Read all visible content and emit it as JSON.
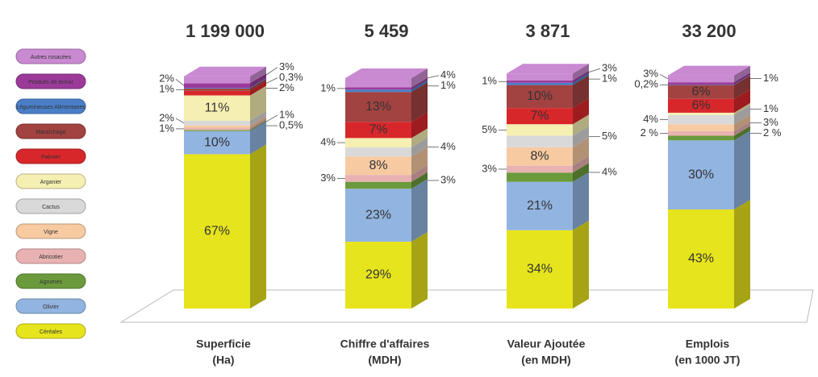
{
  "chart_data": {
    "type": "bar",
    "stacked": true,
    "categories": [
      [
        "Superficie",
        "(Ha)"
      ],
      [
        "Chiffre d'affaires",
        "(MDH)"
      ],
      [
        "Valeur Ajoutée",
        "(en MDH)"
      ],
      [
        "Emplois",
        "(en 1000 JT)"
      ]
    ],
    "totals": [
      {
        "value": 1199000,
        "label": "1 199 000"
      },
      {
        "value": 5459,
        "label": "5 459"
      },
      {
        "value": 3871,
        "label": "3 871"
      },
      {
        "value": 33200,
        "label": "33 200"
      }
    ],
    "series": [
      {
        "name": "Céréales",
        "color": "#e6e41c",
        "values": [
          67,
          29,
          34,
          43
        ],
        "value_labels": [
          "67%",
          "29%",
          "34%",
          "43%"
        ]
      },
      {
        "name": "Olivier",
        "color": "#92b4e0",
        "values": [
          10,
          23,
          21,
          30
        ],
        "value_labels": [
          "10%",
          "23%",
          "21%",
          "30%"
        ]
      },
      {
        "name": "Agrumes",
        "color": "#6b9a3c",
        "values": [
          0.5,
          3,
          4,
          2
        ],
        "value_labels": [
          "0,5%",
          "3%",
          "4%",
          "2 %"
        ]
      },
      {
        "name": "Abricotier",
        "color": "#e9b2b2",
        "values": [
          1,
          3,
          3,
          2
        ],
        "value_labels": [
          "1%",
          "3%",
          "3%",
          "2 %"
        ]
      },
      {
        "name": "Vigne",
        "color": "#f7caa2",
        "values": [
          1,
          8,
          8,
          3
        ],
        "value_labels": [
          "1%",
          "8%",
          "8%",
          "3%"
        ]
      },
      {
        "name": "Cactus",
        "color": "#d9d9d9",
        "values": [
          2,
          4,
          5,
          4
        ],
        "value_labels": [
          "2%",
          "4%",
          "5%",
          "4%"
        ]
      },
      {
        "name": "Arganier",
        "color": "#f6efb2",
        "values": [
          11,
          4,
          5,
          1
        ],
        "value_labels": [
          "11%",
          "4%",
          "5%",
          "1%"
        ]
      },
      {
        "name": "Palmier",
        "color": "#d8272b",
        "values": [
          2,
          7,
          7,
          6
        ],
        "value_labels": [
          "2%",
          "7%",
          "7%",
          "6%"
        ]
      },
      {
        "name": "Maraîchage",
        "color": "#a24241",
        "values": [
          1,
          13,
          10,
          6
        ],
        "value_labels": [
          "1%",
          "13%",
          "10%",
          "6%"
        ]
      },
      {
        "name": "Légumineuses Alimentaires",
        "color": "#4a7fc8",
        "values": [
          0.3,
          1,
          1,
          0.2
        ],
        "value_labels": [
          "0,3%",
          "1%",
          "1%",
          "0,2%"
        ]
      },
      {
        "name": "Produits de terroir",
        "color": "#9c3a9a",
        "values": [
          2,
          1,
          1,
          1
        ],
        "value_labels": [
          "2%",
          "1%",
          "1%",
          "1%"
        ]
      },
      {
        "name": "Autres rosacées",
        "color": "#c98ad2",
        "values": [
          3,
          4,
          3,
          3
        ],
        "value_labels": [
          "3%",
          "4%",
          "3%",
          "3%"
        ]
      }
    ]
  }
}
